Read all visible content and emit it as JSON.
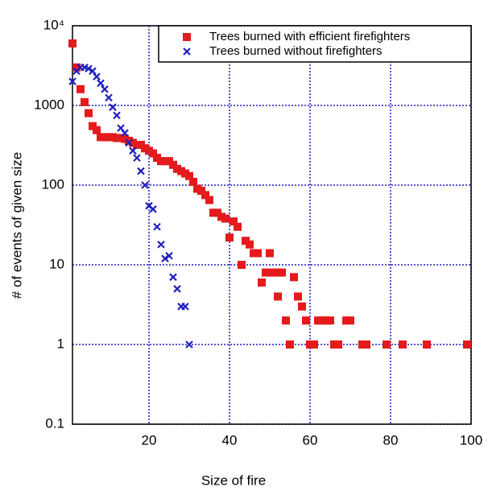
{
  "chart_data": {
    "type": "scatter",
    "xlabel": "Size of fire",
    "ylabel": "# of events of given size",
    "xlim": [
      1,
      100
    ],
    "ylim": [
      0.1,
      10000
    ],
    "log_y": true,
    "grid": true,
    "legend": "upper right",
    "xticks": [
      20,
      40,
      60,
      80,
      100
    ],
    "yticks": [
      0.1,
      1,
      10,
      100,
      1000,
      {
        "value": 10000,
        "label": "10⁴"
      }
    ],
    "series": [
      {
        "name": "Trees burned with efficient firefighters",
        "color": "#e41a1c",
        "marker": "square",
        "x": [
          1,
          2,
          3,
          4,
          5,
          6,
          7,
          8,
          9,
          10,
          11,
          12,
          13,
          14,
          15,
          16,
          17,
          18,
          19,
          20,
          21,
          22,
          23,
          24,
          25,
          26,
          27,
          28,
          29,
          30,
          31,
          32,
          33,
          34,
          35,
          36,
          37,
          38,
          39,
          40,
          41,
          42,
          43,
          44,
          45,
          46,
          47,
          48,
          49,
          50,
          51,
          52,
          52,
          53,
          54,
          55,
          56,
          57,
          58,
          59,
          60,
          61,
          62,
          63,
          64,
          65,
          66,
          67,
          69,
          70,
          73,
          74,
          79,
          83,
          89,
          99
        ],
        "values": [
          6000,
          3000,
          1600,
          1100,
          800,
          550,
          490,
          400,
          400,
          400,
          400,
          390,
          390,
          380,
          360,
          340,
          320,
          320,
          290,
          270,
          250,
          220,
          200,
          200,
          200,
          180,
          160,
          150,
          140,
          130,
          110,
          90,
          85,
          75,
          65,
          45,
          45,
          40,
          38,
          22,
          35,
          30,
          10,
          20,
          18,
          14,
          14,
          6,
          8,
          14,
          8,
          8,
          4,
          8,
          2,
          1,
          7,
          4,
          3,
          2,
          1,
          1,
          2,
          2,
          2,
          2,
          1,
          1,
          2,
          2,
          1,
          1,
          1,
          1,
          1,
          1
        ]
      },
      {
        "name": "Trees burned without firefighters",
        "color": "#1f1fbf",
        "marker": "x",
        "x": [
          1,
          2,
          3,
          4,
          5,
          6,
          7,
          8,
          9,
          10,
          11,
          12,
          13,
          14,
          15,
          16,
          17,
          18,
          19,
          20,
          21,
          22,
          23,
          24,
          25,
          26,
          27,
          28,
          29,
          30
        ],
        "values": [
          2000,
          2700,
          3000,
          3000,
          2900,
          2700,
          2300,
          1900,
          1600,
          1250,
          950,
          750,
          520,
          450,
          340,
          270,
          220,
          150,
          100,
          55,
          50,
          30,
          18,
          12,
          13,
          7,
          5,
          3,
          3,
          1
        ]
      }
    ]
  }
}
